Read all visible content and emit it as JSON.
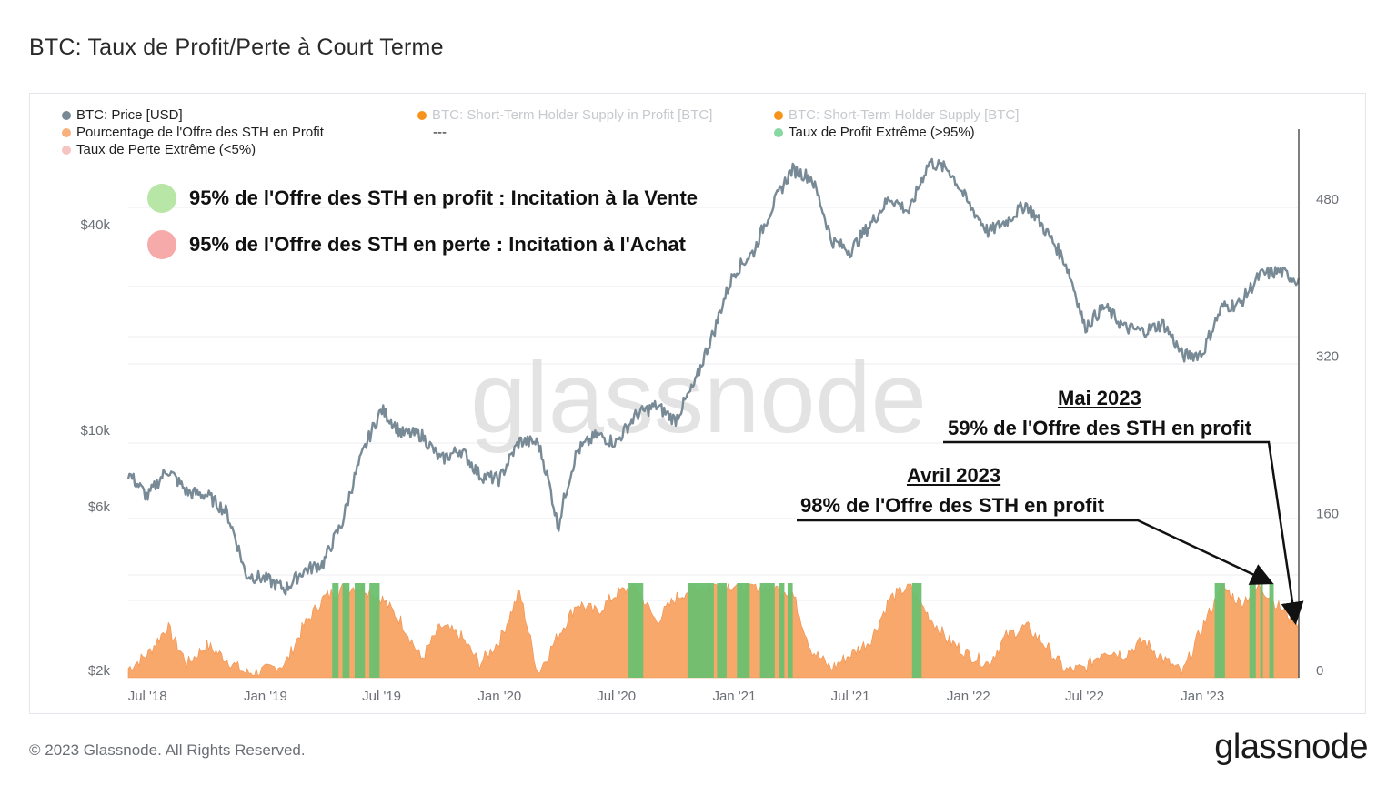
{
  "title": "BTC: Taux de Profit/Perte à Court Terme",
  "copyright": "© 2023 Glassnode. All Rights Reserved.",
  "logo": "glassnode",
  "watermark": "glassnode",
  "legend": [
    {
      "label": "BTC: Price [USD]",
      "color": "#788a96"
    },
    {
      "label": "BTC: Short-Term Holder Supply in Profit [BTC]",
      "color": "#f7931a"
    },
    {
      "label": "BTC: Short-Term Holder Supply [BTC]",
      "color": "#f7931a"
    },
    {
      "label": "Pourcentage de l'Offre des STH en Profit",
      "color": "#f9b07f"
    },
    {
      "label": "---"
    },
    {
      "label": "Taux de Profit Extrême (>95%)",
      "color": "#86d9a0"
    },
    {
      "label": "Taux de Perte Extrême (<5%)",
      "color": "#f7c3c3"
    }
  ],
  "big_legend": [
    {
      "label": "95% de l'Offre des STH en profit : Incitation à la Vente",
      "color": "#b7e6a6"
    },
    {
      "label": "95% de l'Offre des STH en perte : Incitation à l'Achat",
      "color": "#f7aaaa"
    }
  ],
  "annotations": {
    "mai": {
      "title": "Mai 2023",
      "text": "59% de l'Offre des STH en profit"
    },
    "avril": {
      "title": "Avril 2023",
      "text": "98% de l'Offre des STH en profit"
    }
  },
  "colors": {
    "price": "#788a96",
    "profit_area": "#f9a86c",
    "extreme_profit": "#6cc070",
    "extreme_loss": "#f4a6a6",
    "grid": "#eceef1"
  },
  "chart_data": {
    "type": "line",
    "log_scale_left": true,
    "left_ticks": [
      {
        "v": 2000,
        "label": "$2k"
      },
      {
        "v": 6000,
        "label": "$6k"
      },
      {
        "v": 10000,
        "label": "$10k"
      },
      {
        "v": 40000,
        "label": "$40k"
      }
    ],
    "right_ticks": [
      {
        "v": 0,
        "label": "0"
      },
      {
        "v": 160,
        "label": "160"
      },
      {
        "v": 320,
        "label": "320"
      },
      {
        "v": 480,
        "label": "480"
      }
    ],
    "x_ticks": [
      {
        "date": "2018-07-01",
        "label": "Jul '18"
      },
      {
        "date": "2019-01-01",
        "label": "Jan '19"
      },
      {
        "date": "2019-07-01",
        "label": "Jul '19"
      },
      {
        "date": "2020-01-01",
        "label": "Jan '20"
      },
      {
        "date": "2020-07-01",
        "label": "Jul '20"
      },
      {
        "date": "2021-01-01",
        "label": "Jan '21"
      },
      {
        "date": "2021-07-01",
        "label": "Jul '21"
      },
      {
        "date": "2022-01-01",
        "label": "Jan '22"
      },
      {
        "date": "2022-07-01",
        "label": "Jul '22"
      },
      {
        "date": "2023-01-01",
        "label": "Jan '23"
      }
    ],
    "x_range": [
      "2018-06-01",
      "2023-05-31"
    ],
    "grid": true,
    "price_series": {
      "name": "BTC: Price [USD]",
      "x": [
        "2018-06-01",
        "2018-07-01",
        "2018-08-01",
        "2018-09-01",
        "2018-10-01",
        "2018-11-01",
        "2018-12-01",
        "2019-01-01",
        "2019-02-01",
        "2019-03-01",
        "2019-04-01",
        "2019-05-01",
        "2019-06-01",
        "2019-07-01",
        "2019-08-01",
        "2019-09-01",
        "2019-10-01",
        "2019-11-01",
        "2019-12-01",
        "2020-01-01",
        "2020-02-01",
        "2020-03-01",
        "2020-04-01",
        "2020-05-01",
        "2020-06-01",
        "2020-07-01",
        "2020-08-01",
        "2020-09-01",
        "2020-10-01",
        "2020-11-01",
        "2020-12-01",
        "2021-01-01",
        "2021-02-01",
        "2021-03-01",
        "2021-04-01",
        "2021-05-01",
        "2021-06-01",
        "2021-07-01",
        "2021-08-01",
        "2021-09-01",
        "2021-10-01",
        "2021-11-01",
        "2021-12-01",
        "2022-01-01",
        "2022-02-01",
        "2022-03-01",
        "2022-04-01",
        "2022-05-01",
        "2022-06-01",
        "2022-07-01",
        "2022-08-01",
        "2022-09-01",
        "2022-10-01",
        "2022-11-01",
        "2022-12-01",
        "2023-01-01",
        "2023-02-01",
        "2023-03-01",
        "2023-04-01",
        "2023-05-01",
        "2023-05-31"
      ],
      "y": [
        7500,
        6400,
        7700,
        6600,
        6500,
        5800,
        3800,
        3700,
        3450,
        3900,
        4100,
        5400,
        8500,
        11500,
        9800,
        9700,
        8200,
        8800,
        7400,
        7200,
        9300,
        9200,
        5200,
        8700,
        9700,
        9200,
        11100,
        11800,
        10700,
        13700,
        19600,
        29000,
        33500,
        45000,
        58000,
        55000,
        36000,
        33500,
        40000,
        48000,
        43500,
        61000,
        58000,
        46000,
        38000,
        41000,
        46000,
        38500,
        31000,
        20000,
        23000,
        20000,
        19500,
        20500,
        16500,
        16800,
        23000,
        23500,
        28500,
        29200,
        27500
      ]
    },
    "sth_profit_pct": {
      "name": "Pourcentage de l'Offre des STH en Profit",
      "x": [
        "2018-06-01",
        "2018-07-01",
        "2018-08-01",
        "2018-09-01",
        "2018-10-01",
        "2018-11-01",
        "2018-12-01",
        "2019-01-01",
        "2019-02-01",
        "2019-03-01",
        "2019-04-01",
        "2019-05-01",
        "2019-06-01",
        "2019-07-01",
        "2019-08-01",
        "2019-09-01",
        "2019-10-01",
        "2019-11-01",
        "2019-12-01",
        "2020-01-01",
        "2020-02-01",
        "2020-03-01",
        "2020-04-01",
        "2020-05-01",
        "2020-06-01",
        "2020-07-01",
        "2020-08-01",
        "2020-09-01",
        "2020-10-01",
        "2020-11-01",
        "2020-12-01",
        "2021-01-01",
        "2021-02-01",
        "2021-03-01",
        "2021-04-01",
        "2021-05-01",
        "2021-06-01",
        "2021-07-01",
        "2021-08-01",
        "2021-09-01",
        "2021-10-01",
        "2021-11-01",
        "2021-12-01",
        "2022-01-01",
        "2022-02-01",
        "2022-03-01",
        "2022-04-01",
        "2022-05-01",
        "2022-06-01",
        "2022-07-01",
        "2022-08-01",
        "2022-09-01",
        "2022-10-01",
        "2022-11-01",
        "2022-12-01",
        "2023-01-01",
        "2023-02-01",
        "2023-03-01",
        "2023-04-01",
        "2023-05-01",
        "2023-05-31"
      ],
      "y": [
        10,
        25,
        55,
        15,
        35,
        20,
        5,
        8,
        15,
        55,
        85,
        96,
        97,
        85,
        60,
        20,
        55,
        45,
        15,
        40,
        92,
        5,
        45,
        80,
        70,
        90,
        98,
        60,
        85,
        98,
        99,
        99,
        98,
        96,
        92,
        30,
        10,
        25,
        40,
        85,
        98,
        65,
        40,
        25,
        15,
        45,
        55,
        35,
        8,
        10,
        30,
        25,
        40,
        20,
        5,
        55,
        97,
        80,
        98,
        75,
        59
      ]
    },
    "extreme_profit_periods": [
      [
        "2019-04-15",
        "2019-04-25"
      ],
      [
        "2019-05-01",
        "2019-05-12"
      ],
      [
        "2019-05-20",
        "2019-06-05"
      ],
      [
        "2019-06-12",
        "2019-06-28"
      ],
      [
        "2020-07-20",
        "2020-08-12"
      ],
      [
        "2020-10-20",
        "2020-11-30"
      ],
      [
        "2020-12-05",
        "2020-12-20"
      ],
      [
        "2021-01-05",
        "2021-01-25"
      ],
      [
        "2021-02-10",
        "2021-03-05"
      ],
      [
        "2021-03-12",
        "2021-03-20"
      ],
      [
        "2021-03-25",
        "2021-04-02"
      ],
      [
        "2021-10-05",
        "2021-10-20"
      ],
      [
        "2023-01-20",
        "2023-02-05"
      ],
      [
        "2023-03-15",
        "2023-03-25"
      ],
      [
        "2023-04-01",
        "2023-04-05"
      ],
      [
        "2023-04-15",
        "2023-04-22"
      ]
    ]
  }
}
